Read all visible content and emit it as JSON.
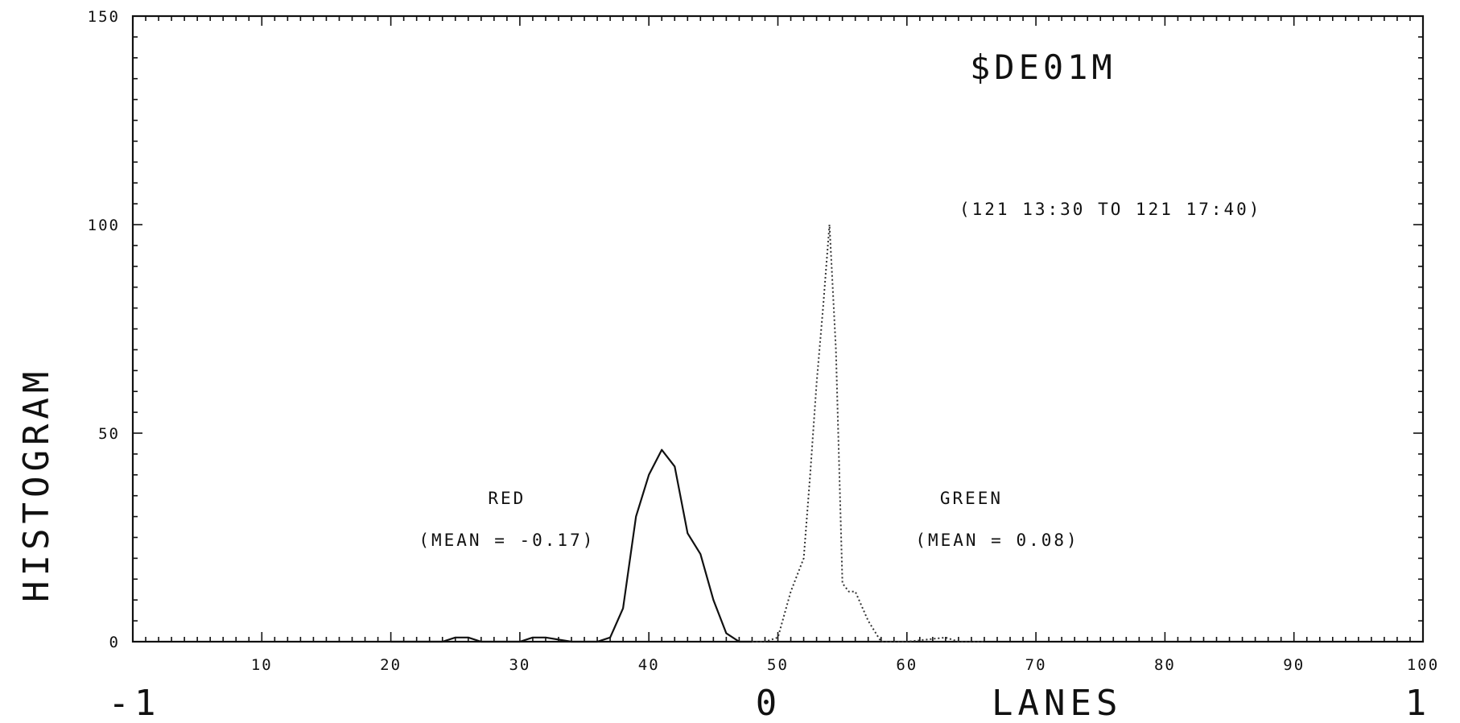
{
  "chart_data": {
    "type": "line",
    "title": "$DE01M",
    "subtitle": "(121 13:30 TO 121 17:40)",
    "xlabel": "LANES",
    "ylabel": "HISTOGRAM",
    "xlim": [
      0,
      100
    ],
    "ylim": [
      0,
      150
    ],
    "x_ticks": [
      "10",
      "20",
      "30",
      "40",
      "50",
      "60",
      "70",
      "80",
      "90",
      "100"
    ],
    "y_ticks": [
      "0",
      "50",
      "100",
      "150"
    ],
    "x_secondary_labels": [
      "-1",
      "0",
      "1"
    ],
    "grid": false,
    "series": [
      {
        "name": "RED",
        "style": "solid",
        "color": "#111111",
        "x": [
          20,
          24,
          25,
          26,
          27,
          30,
          31,
          32,
          34,
          35,
          36,
          37,
          38,
          39,
          40,
          41,
          42,
          43,
          44,
          45,
          46,
          47,
          48
        ],
        "y": [
          0,
          0,
          1,
          1,
          0,
          0,
          1,
          1,
          0,
          0,
          0,
          1,
          8,
          30,
          40,
          46,
          42,
          26,
          21,
          10,
          2,
          0,
          0
        ]
      },
      {
        "name": "GREEN",
        "style": "dotted",
        "color": "#333333",
        "x": [
          48,
          49,
          50,
          51,
          52,
          52.5,
          53,
          53.5,
          54,
          54.5,
          55,
          55.5,
          56,
          57,
          58,
          60,
          63,
          64,
          66
        ],
        "y": [
          0,
          0,
          1,
          12,
          20,
          40,
          62,
          80,
          100,
          70,
          14,
          12,
          12,
          5,
          0,
          0,
          1,
          0,
          0
        ]
      }
    ],
    "annotations": [
      {
        "text": "RED",
        "x": 29,
        "y": 33
      },
      {
        "text": "(MEAN = -0.17)",
        "x": 29,
        "y": 23
      },
      {
        "text": "GREEN",
        "x": 65,
        "y": 33
      },
      {
        "text": "(MEAN = 0.08)",
        "x": 67,
        "y": 23
      }
    ]
  }
}
